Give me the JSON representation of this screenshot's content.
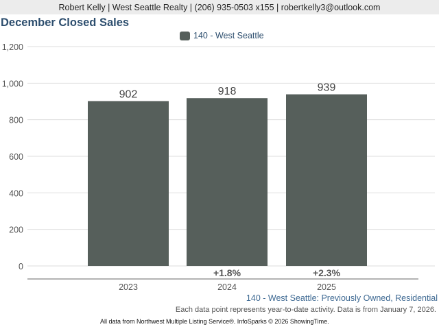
{
  "header": {
    "contact": "Robert Kelly | West Seattle Realty | (206) 935-0503 x155 | robertkelly3@outlook.com"
  },
  "colors": {
    "bar": "#565f5b",
    "title": "#2d4e6e",
    "grid": "#dddddd"
  },
  "chart_data": {
    "type": "bar",
    "title": "December Closed Sales",
    "legend": [
      "140 - West Seattle"
    ],
    "categories": [
      "2023",
      "2024",
      "2025"
    ],
    "values": [
      902,
      918,
      939
    ],
    "value_labels": [
      "902",
      "918",
      "939"
    ],
    "change_labels": [
      "",
      "+1.8%",
      "+2.3%"
    ],
    "yticks": [
      "0",
      "200",
      "400",
      "600",
      "800",
      "1,000",
      "1,200"
    ],
    "ylim": [
      0,
      1200
    ],
    "grid": true,
    "subtitle": "140 - West Seattle: Previously Owned, Residential"
  },
  "footer": {
    "note": "Each data point represents year-to-date activity. Data is from January 7, 2026.",
    "credit": "All data from Northwest Multiple Listing Service®. InfoSparks © 2026 ShowingTime."
  }
}
